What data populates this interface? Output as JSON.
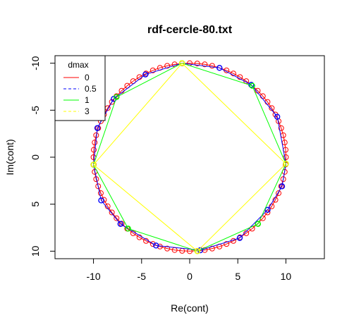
{
  "chart_data": {
    "type": "line",
    "title": "rdf-cercle-80.txt",
    "xlabel": "Re(cont)",
    "ylabel": "Im(cont)",
    "xlim": [
      -14,
      14
    ],
    "ylim": [
      -10.8,
      10.8
    ],
    "y_reversed": true,
    "x_ticks": [
      -10,
      -5,
      0,
      5,
      10
    ],
    "y_ticks": [
      -10,
      -5,
      0,
      5,
      10
    ],
    "x_tick_labels": [
      "-10",
      "-5",
      "0",
      "5",
      "10"
    ],
    "y_tick_labels": [
      "-10",
      "-5",
      "0",
      "5",
      "10"
    ],
    "grid": false,
    "legend": {
      "title": "dmax",
      "position": "top-left",
      "entries": [
        {
          "label": "0",
          "color": "#ff0000",
          "dash": "solid"
        },
        {
          "label": "0.5",
          "color": "#0000ff",
          "dash": "dashed"
        },
        {
          "label": "1",
          "color": "#00ff00",
          "dash": "solid"
        },
        {
          "label": "3",
          "color": "#ffff00",
          "dash": "dashed"
        }
      ]
    },
    "circle": {
      "radius": 10,
      "n_points": 80,
      "start_angle_deg": 0,
      "color": "#ff0000"
    },
    "series": [
      {
        "name": "0.5",
        "color": "#0000ff",
        "x": [
          10,
          9.1,
          6.4,
          3.1,
          -0.8,
          -4.6,
          -7.9,
          -9.6,
          -10,
          -9.2,
          -7.2,
          -3.5,
          1.1,
          5.2,
          8.1,
          9.6,
          10
        ],
        "y": [
          0.7,
          -4.3,
          -7.7,
          -9.5,
          -10,
          -8.8,
          -6.2,
          -3.1,
          0.8,
          4.6,
          7.1,
          9.4,
          9.9,
          8.6,
          5.6,
          3.1,
          0.7
        ]
      },
      {
        "name": "1",
        "color": "#00ff00",
        "x": [
          10,
          6.5,
          -0.8,
          -7.6,
          -10,
          -6.4,
          0.8,
          7.1,
          10
        ],
        "y": [
          0.7,
          -7.6,
          -10,
          -6.4,
          0.8,
          7.6,
          10,
          7.1,
          0.7
        ]
      },
      {
        "name": "3",
        "color": "#ffff00",
        "x": [
          10,
          -0.8,
          -10,
          0.8,
          10
        ],
        "y": [
          0.7,
          -10,
          0.8,
          10,
          0.7
        ]
      }
    ]
  }
}
